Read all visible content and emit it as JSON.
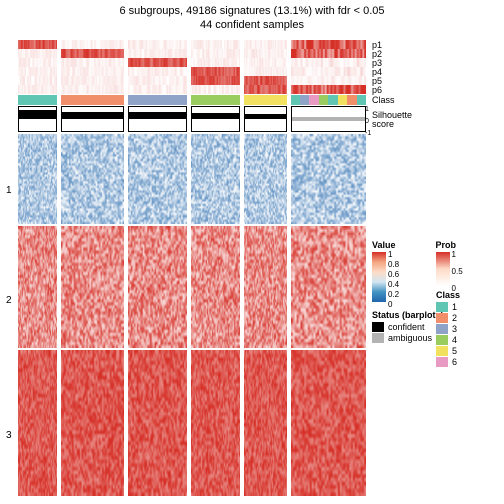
{
  "title_line1": "6 subgroups, 49186 signatures (13.1%) with fdr < 0.05",
  "title_line2": "44 confident samples",
  "prob_row_labels": [
    "p1",
    "p2",
    "p3",
    "p4",
    "p5",
    "p6"
  ],
  "right_labels": {
    "class": "Class",
    "silhouette": "Silhouette\nscore",
    "sil_ticks": [
      "1",
      "0",
      "-1"
    ]
  },
  "heatmap_row_labels": [
    "1",
    "2",
    "3"
  ],
  "class_colors": [
    "#5fc6b3",
    "#f28f6b",
    "#8fa3c8",
    "#9acd5f",
    "#f2e05f",
    "#e89ac2"
  ],
  "columns": [
    {
      "w": 0.12,
      "class_idx": 0,
      "prob_heavy": [
        0
      ],
      "sil_h": 0.72,
      "sil_bottom": true,
      "mixed": false
    },
    {
      "w": 0.19,
      "class_idx": 1,
      "prob_heavy": [
        1
      ],
      "sil_h": 0.55,
      "sil_bottom": true,
      "mixed": false
    },
    {
      "w": 0.18,
      "class_idx": 2,
      "prob_heavy": [
        2
      ],
      "sil_h": 0.6,
      "sil_bottom": true,
      "mixed": false
    },
    {
      "w": 0.15,
      "class_idx": 3,
      "prob_heavy": [
        3,
        4
      ],
      "sil_h": 0.5,
      "sil_bottom": true,
      "mixed": false
    },
    {
      "w": 0.13,
      "class_idx": 4,
      "prob_heavy": [
        4,
        5
      ],
      "sil_h": 0.42,
      "sil_bottom": true,
      "mixed": false
    },
    {
      "w": 0.23,
      "class_idx": 5,
      "prob_heavy": [
        0,
        1,
        5
      ],
      "sil_h": 0.18,
      "sil_bottom": false,
      "mixed": true
    }
  ],
  "heatmap_blocks": [
    {
      "base": "blue",
      "mean": 0.35,
      "var": 0.35
    },
    {
      "base": "red",
      "mean": 0.55,
      "var": 0.4
    },
    {
      "base": "red",
      "mean": 0.8,
      "var": 0.25
    }
  ],
  "legend": {
    "value": {
      "title": "Value",
      "ticks": [
        "1",
        "0.8",
        "0.6",
        "0.4",
        "0.2",
        "0"
      ],
      "colors": [
        "#d62f26",
        "#f4a582",
        "#fddbc7",
        "#d1e5f0",
        "#4393c3",
        "#2166ac"
      ]
    },
    "prob": {
      "title": "Prob",
      "ticks": [
        "1",
        "0.5",
        "0"
      ],
      "colors": [
        "#d62f26",
        "#fddbc7",
        "#ffffff"
      ]
    },
    "status": {
      "title": "Status (barplots)",
      "items": [
        {
          "label": "confident",
          "color": "#000000"
        },
        {
          "label": "ambiguous",
          "color": "#b3b3b3"
        }
      ]
    },
    "class": {
      "title": "Class",
      "items": [
        {
          "label": "1",
          "color": "#5fc6b3"
        },
        {
          "label": "2",
          "color": "#f28f6b"
        },
        {
          "label": "3",
          "color": "#8fa3c8"
        },
        {
          "label": "4",
          "color": "#9acd5f"
        },
        {
          "label": "5",
          "color": "#f2e05f"
        },
        {
          "label": "6",
          "color": "#e89ac2"
        }
      ]
    }
  },
  "styling": {
    "prob_colormap_low": "#ffffff",
    "prob_colormap_high": "#d62f26",
    "heat_blue_low": "#ffffff",
    "heat_blue_high": "#2166ac",
    "heat_red_low": "#ffffff",
    "heat_red_high": "#d62f26",
    "font_size_title": 11,
    "font_size_label": 9
  }
}
